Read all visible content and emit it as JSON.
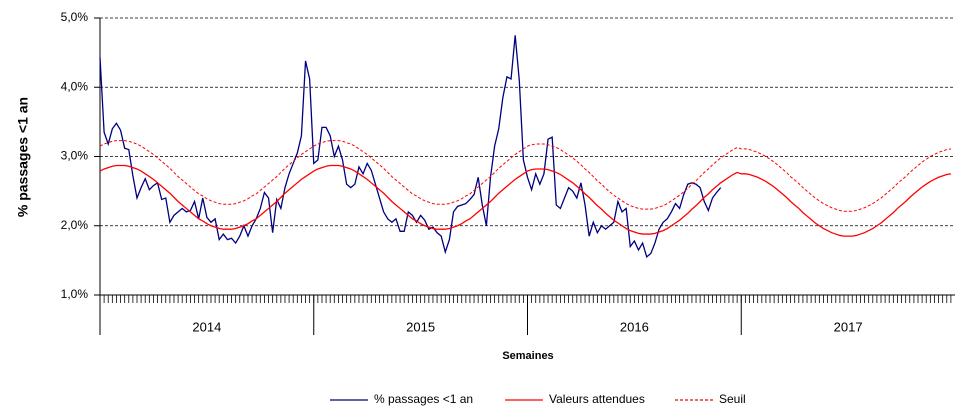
{
  "chart_data": {
    "type": "line",
    "xlabel": "Semaines",
    "ylabel": "% passages <1 an",
    "xgroups": [
      "2014",
      "2015",
      "2016",
      "2017"
    ],
    "ylim": [
      1,
      5
    ],
    "yticks": [
      {
        "value": 1,
        "label": "1,0%"
      },
      {
        "value": 2,
        "label": "2,0%"
      },
      {
        "value": 3,
        "label": "3,0%"
      },
      {
        "value": 4,
        "label": "4,0%"
      },
      {
        "value": 5,
        "label": "5,0%"
      }
    ],
    "grid": true,
    "legend": "bottom",
    "series": [
      {
        "name": "% passages <1 an",
        "color": "#000080",
        "style": "solid",
        "values": [
          4.43,
          3.35,
          3.18,
          3.4,
          3.48,
          3.38,
          3.12,
          3.1,
          2.72,
          2.4,
          2.55,
          2.68,
          2.52,
          2.58,
          2.62,
          2.38,
          2.4,
          2.05,
          2.15,
          2.2,
          2.25,
          2.2,
          2.22,
          2.35,
          2.1,
          2.4,
          2.12,
          2.05,
          2.1,
          1.8,
          1.88,
          1.8,
          1.82,
          1.75,
          1.85,
          2.0,
          1.85,
          2.0,
          2.1,
          2.25,
          2.48,
          2.4,
          1.9,
          2.38,
          2.25,
          2.55,
          2.75,
          2.9,
          3.05,
          3.3,
          4.38,
          4.12,
          2.9,
          2.95,
          3.42,
          3.42,
          3.3,
          3.0,
          3.15,
          2.95,
          2.6,
          2.55,
          2.6,
          2.85,
          2.75,
          2.9,
          2.8,
          2.6,
          2.4,
          2.2,
          2.1,
          2.05,
          2.1,
          1.92,
          1.92,
          2.2,
          2.15,
          2.05,
          2.15,
          2.08,
          1.95,
          1.98,
          1.9,
          1.85,
          1.62,
          1.8,
          2.2,
          2.28,
          2.3,
          2.32,
          2.38,
          2.45,
          2.7,
          2.3,
          2.0,
          2.7,
          3.15,
          3.4,
          3.85,
          4.15,
          4.12,
          4.75,
          4.1,
          2.95,
          2.7,
          2.52,
          2.75,
          2.6,
          2.75,
          3.25,
          3.28,
          2.3,
          2.25,
          2.4,
          2.55,
          2.5,
          2.4,
          2.62,
          2.3,
          1.85,
          2.05,
          1.9,
          2.0,
          1.95,
          2.0,
          2.05,
          2.35,
          2.2,
          2.25,
          1.7,
          1.78,
          1.65,
          1.75,
          1.55,
          1.6,
          1.75,
          1.95,
          2.05,
          2.1,
          2.2,
          2.32,
          2.25,
          2.45,
          2.6,
          2.62,
          2.6,
          2.55,
          2.35,
          2.22,
          2.4,
          2.48,
          2.55,
          null,
          null,
          null,
          null,
          null,
          null,
          null,
          null,
          null,
          null,
          null,
          null,
          null,
          null,
          null,
          null,
          null,
          null,
          null,
          null,
          null,
          null,
          null,
          null,
          null,
          null,
          null,
          null,
          null,
          null,
          null,
          null,
          null,
          null,
          null,
          null,
          null,
          null,
          null,
          null,
          null,
          null,
          null,
          null,
          null,
          null,
          null,
          null,
          null,
          null,
          null,
          null,
          null,
          null,
          null,
          null
        ]
      },
      {
        "name": "Valeurs attendues",
        "color": "#ff0000",
        "style": "solid",
        "values": [
          2.79,
          2.82,
          2.84,
          2.86,
          2.87,
          2.87,
          2.87,
          2.86,
          2.84,
          2.82,
          2.79,
          2.75,
          2.71,
          2.67,
          2.62,
          2.57,
          2.52,
          2.47,
          2.41,
          2.35,
          2.3,
          2.25,
          2.2,
          2.15,
          2.1,
          2.07,
          2.03,
          2.0,
          1.98,
          1.96,
          1.95,
          1.95,
          1.95,
          1.96,
          1.98,
          2.0,
          2.03,
          2.07,
          2.1,
          2.15,
          2.2,
          2.25,
          2.3,
          2.35,
          2.41,
          2.47,
          2.52,
          2.57,
          2.62,
          2.67,
          2.71,
          2.75,
          2.79,
          2.82,
          2.84,
          2.86,
          2.87,
          2.87,
          2.87,
          2.86,
          2.84,
          2.82,
          2.79,
          2.75,
          2.71,
          2.67,
          2.62,
          2.57,
          2.52,
          2.47,
          2.41,
          2.35,
          2.3,
          2.25,
          2.2,
          2.15,
          2.1,
          2.07,
          2.03,
          2.0,
          1.98,
          1.96,
          1.95,
          1.95,
          1.95,
          1.96,
          1.98,
          2.0,
          2.03,
          2.07,
          2.1,
          2.15,
          2.2,
          2.25,
          2.3,
          2.35,
          2.41,
          2.47,
          2.52,
          2.57,
          2.62,
          2.67,
          2.71,
          2.75,
          2.79,
          2.81,
          2.82,
          2.82,
          2.82,
          2.81,
          2.79,
          2.77,
          2.74,
          2.7,
          2.66,
          2.62,
          2.57,
          2.52,
          2.46,
          2.41,
          2.35,
          2.29,
          2.24,
          2.18,
          2.13,
          2.08,
          2.04,
          2.0,
          1.96,
          1.93,
          1.91,
          1.89,
          1.88,
          1.88,
          1.88,
          1.89,
          1.91,
          1.93,
          1.96,
          2.0,
          2.04,
          2.08,
          2.13,
          2.18,
          2.24,
          2.29,
          2.35,
          2.41,
          2.46,
          2.52,
          2.57,
          2.62,
          2.66,
          2.7,
          2.74,
          2.77,
          2.75,
          2.75,
          2.74,
          2.72,
          2.7,
          2.67,
          2.64,
          2.6,
          2.56,
          2.51,
          2.46,
          2.41,
          2.35,
          2.3,
          2.25,
          2.19,
          2.14,
          2.09,
          2.04,
          2.0,
          1.96,
          1.93,
          1.9,
          1.88,
          1.86,
          1.85,
          1.85,
          1.85,
          1.86,
          1.88,
          1.9,
          1.93,
          1.96,
          2.0,
          2.04,
          2.09,
          2.14,
          2.19,
          2.25,
          2.3,
          2.35,
          2.41,
          2.46,
          2.51,
          2.56,
          2.6,
          2.64,
          2.67,
          2.7,
          2.72,
          2.74,
          2.75
        ]
      },
      {
        "name": "Seuil",
        "color": "#ff0000",
        "style": "dashed",
        "values": [
          3.15,
          3.18,
          3.2,
          3.22,
          3.23,
          3.23,
          3.23,
          3.22,
          3.2,
          3.18,
          3.15,
          3.11,
          3.07,
          3.03,
          2.98,
          2.93,
          2.88,
          2.83,
          2.77,
          2.71,
          2.66,
          2.61,
          2.56,
          2.51,
          2.46,
          2.43,
          2.39,
          2.36,
          2.34,
          2.32,
          2.31,
          2.31,
          2.31,
          2.32,
          2.34,
          2.36,
          2.39,
          2.43,
          2.46,
          2.51,
          2.56,
          2.61,
          2.66,
          2.71,
          2.77,
          2.83,
          2.88,
          2.93,
          2.98,
          3.03,
          3.07,
          3.11,
          3.15,
          3.18,
          3.2,
          3.22,
          3.23,
          3.23,
          3.23,
          3.22,
          3.2,
          3.18,
          3.15,
          3.11,
          3.07,
          3.03,
          2.98,
          2.93,
          2.88,
          2.83,
          2.77,
          2.71,
          2.66,
          2.61,
          2.56,
          2.51,
          2.46,
          2.43,
          2.39,
          2.36,
          2.34,
          2.32,
          2.31,
          2.31,
          2.31,
          2.32,
          2.34,
          2.36,
          2.39,
          2.43,
          2.46,
          2.51,
          2.56,
          2.61,
          2.66,
          2.71,
          2.77,
          2.83,
          2.88,
          2.93,
          2.98,
          3.03,
          3.07,
          3.11,
          3.15,
          3.17,
          3.18,
          3.18,
          3.18,
          3.17,
          3.15,
          3.13,
          3.1,
          3.06,
          3.02,
          2.98,
          2.93,
          2.88,
          2.82,
          2.77,
          2.71,
          2.65,
          2.6,
          2.54,
          2.49,
          2.44,
          2.4,
          2.36,
          2.32,
          2.29,
          2.27,
          2.25,
          2.24,
          2.24,
          2.24,
          2.25,
          2.27,
          2.29,
          2.32,
          2.36,
          2.4,
          2.44,
          2.49,
          2.54,
          2.6,
          2.65,
          2.71,
          2.77,
          2.82,
          2.88,
          2.93,
          2.98,
          3.02,
          3.06,
          3.1,
          3.13,
          3.11,
          3.11,
          3.1,
          3.08,
          3.06,
          3.03,
          3.0,
          2.96,
          2.92,
          2.87,
          2.82,
          2.77,
          2.71,
          2.66,
          2.61,
          2.55,
          2.5,
          2.45,
          2.4,
          2.36,
          2.32,
          2.29,
          2.26,
          2.24,
          2.22,
          2.21,
          2.21,
          2.21,
          2.22,
          2.24,
          2.26,
          2.29,
          2.32,
          2.36,
          2.4,
          2.45,
          2.5,
          2.55,
          2.61,
          2.66,
          2.71,
          2.77,
          2.82,
          2.87,
          2.92,
          2.96,
          3.0,
          3.03,
          3.06,
          3.08,
          3.1,
          3.11
        ]
      }
    ]
  }
}
